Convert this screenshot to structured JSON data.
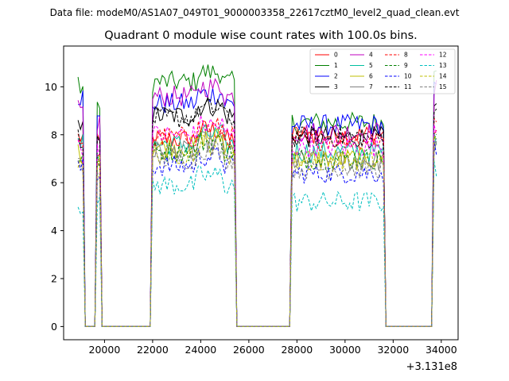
{
  "suptitle": "Data file: modeM0/AS1A07_049T01_9000003358_22617cztM0_level2_quad_clean.evt",
  "chart_data": {
    "type": "line",
    "title": "Quadrant 0 module wise count rates with 100.0s bins.",
    "xlabel": "",
    "ylabel": "",
    "x_offset_label": "+3.131e8",
    "xlim": [
      18300,
      34700
    ],
    "ylim": [
      -0.55,
      11.7
    ],
    "xticks": [
      20000,
      22000,
      24000,
      26000,
      28000,
      30000,
      32000,
      34000
    ],
    "yticks": [
      0,
      2,
      4,
      6,
      8,
      10
    ],
    "legend_position": "top-right",
    "segments": [
      {
        "x_start": 18900,
        "x_end": 19100,
        "kind": "active"
      },
      {
        "x_start": 19200,
        "x_end": 19600,
        "kind": "gap_zero"
      },
      {
        "x_start": 19700,
        "x_end": 19800,
        "kind": "active"
      },
      {
        "x_start": 19900,
        "x_end": 21900,
        "kind": "gap_zero"
      },
      {
        "x_start": 22000,
        "x_end": 25400,
        "kind": "active"
      },
      {
        "x_start": 25500,
        "x_end": 27700,
        "kind": "gap_zero"
      },
      {
        "x_start": 27800,
        "x_end": 31600,
        "kind": "active"
      },
      {
        "x_start": 31700,
        "x_end": 33600,
        "kind": "gap_zero"
      },
      {
        "x_start": 33700,
        "x_end": 33800,
        "kind": "active"
      }
    ],
    "series": [
      {
        "name": "0",
        "color": "#ff0000",
        "dash": "solid",
        "mean": [
          8.3,
          7.9,
          7.6,
          7.8,
          8.0,
          7.7
        ]
      },
      {
        "name": "1",
        "color": "#008000",
        "dash": "solid",
        "mean": [
          9.5,
          10.0,
          9.0,
          10.2,
          8.5,
          10.5
        ]
      },
      {
        "name": "2",
        "color": "#0000ff",
        "dash": "solid",
        "mean": [
          9.0,
          9.6,
          8.6,
          9.3,
          8.4,
          9.4
        ]
      },
      {
        "name": "3",
        "color": "#000000",
        "dash": "solid",
        "mean": [
          8.0,
          8.2,
          8.1,
          8.8,
          7.9,
          8.5
        ]
      },
      {
        "name": "4",
        "color": "#bf00bf",
        "dash": "solid",
        "mean": [
          8.4,
          9.0,
          8.5,
          9.6,
          8.1,
          9.4
        ]
      },
      {
        "name": "5",
        "color": "#00bfa0",
        "dash": "solid",
        "mean": [
          8.0,
          7.6,
          7.3,
          7.6,
          7.3,
          7.5
        ]
      },
      {
        "name": "6",
        "color": "#bfbf00",
        "dash": "solid",
        "mean": [
          7.6,
          7.2,
          7.0,
          7.5,
          7.0,
          7.3
        ]
      },
      {
        "name": "7",
        "color": "#808080",
        "dash": "solid",
        "mean": [
          7.4,
          6.9,
          6.8,
          7.3,
          6.9,
          7.1
        ]
      },
      {
        "name": "8",
        "color": "#ff0000",
        "dash": "dashed",
        "mean": [
          8.1,
          7.4,
          7.3,
          7.9,
          7.8,
          8.2
        ]
      },
      {
        "name": "9",
        "color": "#008000",
        "dash": "dashed",
        "mean": [
          7.7,
          7.1,
          6.9,
          7.3,
          7.0,
          7.4
        ]
      },
      {
        "name": "10",
        "color": "#0000ff",
        "dash": "dashed",
        "mean": [
          6.9,
          6.6,
          6.2,
          6.7,
          6.4,
          6.9
        ]
      },
      {
        "name": "11",
        "color": "#000000",
        "dash": "dashed",
        "mean": [
          8.0,
          7.9,
          7.6,
          8.7,
          7.9,
          8.7
        ]
      },
      {
        "name": "12",
        "color": "#ff00ff",
        "dash": "dashed",
        "mean": [
          8.2,
          7.5,
          7.5,
          8.0,
          7.5,
          7.9
        ]
      },
      {
        "name": "13",
        "color": "#00bfbf",
        "dash": "dashed",
        "mean": [
          5.5,
          5.1,
          5.0,
          5.9,
          5.2,
          6.0
        ]
      },
      {
        "name": "14",
        "color": "#bfbf00",
        "dash": "dashed",
        "mean": [
          7.5,
          7.0,
          6.8,
          7.2,
          6.9,
          7.2
        ]
      },
      {
        "name": "15",
        "color": "#808080",
        "dash": "dashed",
        "mean": [
          7.0,
          6.7,
          6.5,
          7.0,
          6.6,
          7.0
        ]
      }
    ]
  }
}
